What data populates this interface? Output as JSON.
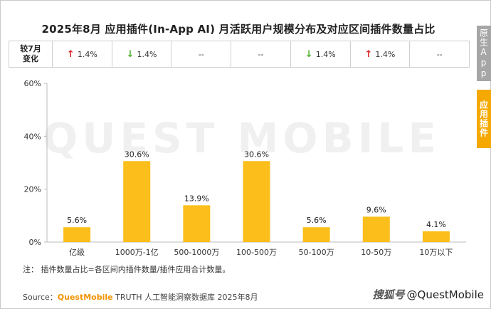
{
  "title": "2025年8月 应用插件(In-App AI) 月活跃用户规模分布及对应区间插件数量占比",
  "change_row": {
    "label_line1": "较7月",
    "label_line2": "变化",
    "cells": [
      {
        "direction": "up",
        "text": "1.4%"
      },
      {
        "direction": "down",
        "text": "1.4%"
      },
      {
        "direction": "none",
        "text": "--"
      },
      {
        "direction": "none",
        "text": "--"
      },
      {
        "direction": "down",
        "text": "1.4%"
      },
      {
        "direction": "up",
        "text": "1.4%"
      },
      {
        "direction": "none",
        "text": "--"
      }
    ]
  },
  "side_tabs": {
    "inactive": "原生App",
    "active": "应用插件"
  },
  "watermark": "QUEST MOBILE",
  "chart_data": {
    "type": "bar",
    "categories": [
      "亿级",
      "1000万-1亿",
      "500-1000万",
      "100-500万",
      "50-100万",
      "10-50万",
      "10万以下"
    ],
    "values": [
      5.6,
      30.6,
      13.9,
      30.6,
      5.6,
      9.6,
      4.1
    ],
    "value_labels": [
      "5.6%",
      "30.6%",
      "13.9%",
      "30.6%",
      "5.6%",
      "9.6%",
      "4.1%"
    ],
    "ylim": [
      0,
      60
    ],
    "yticks": [
      0,
      20,
      40,
      60
    ],
    "ytick_labels": [
      "0%",
      "20%",
      "40%",
      "60%"
    ],
    "bar_color": "#fbbe1a",
    "grid": false
  },
  "note": "注：   插件数量占比=各区间内插件数量/插件应用合计数量。",
  "source": {
    "prefix": "Source：",
    "brand": "QuestMobile",
    "rest": " TRUTH 人工智能洞察数据库 2025年8月"
  },
  "credit": {
    "sohu": "搜狐号",
    "handle": "@QuestMobile"
  }
}
